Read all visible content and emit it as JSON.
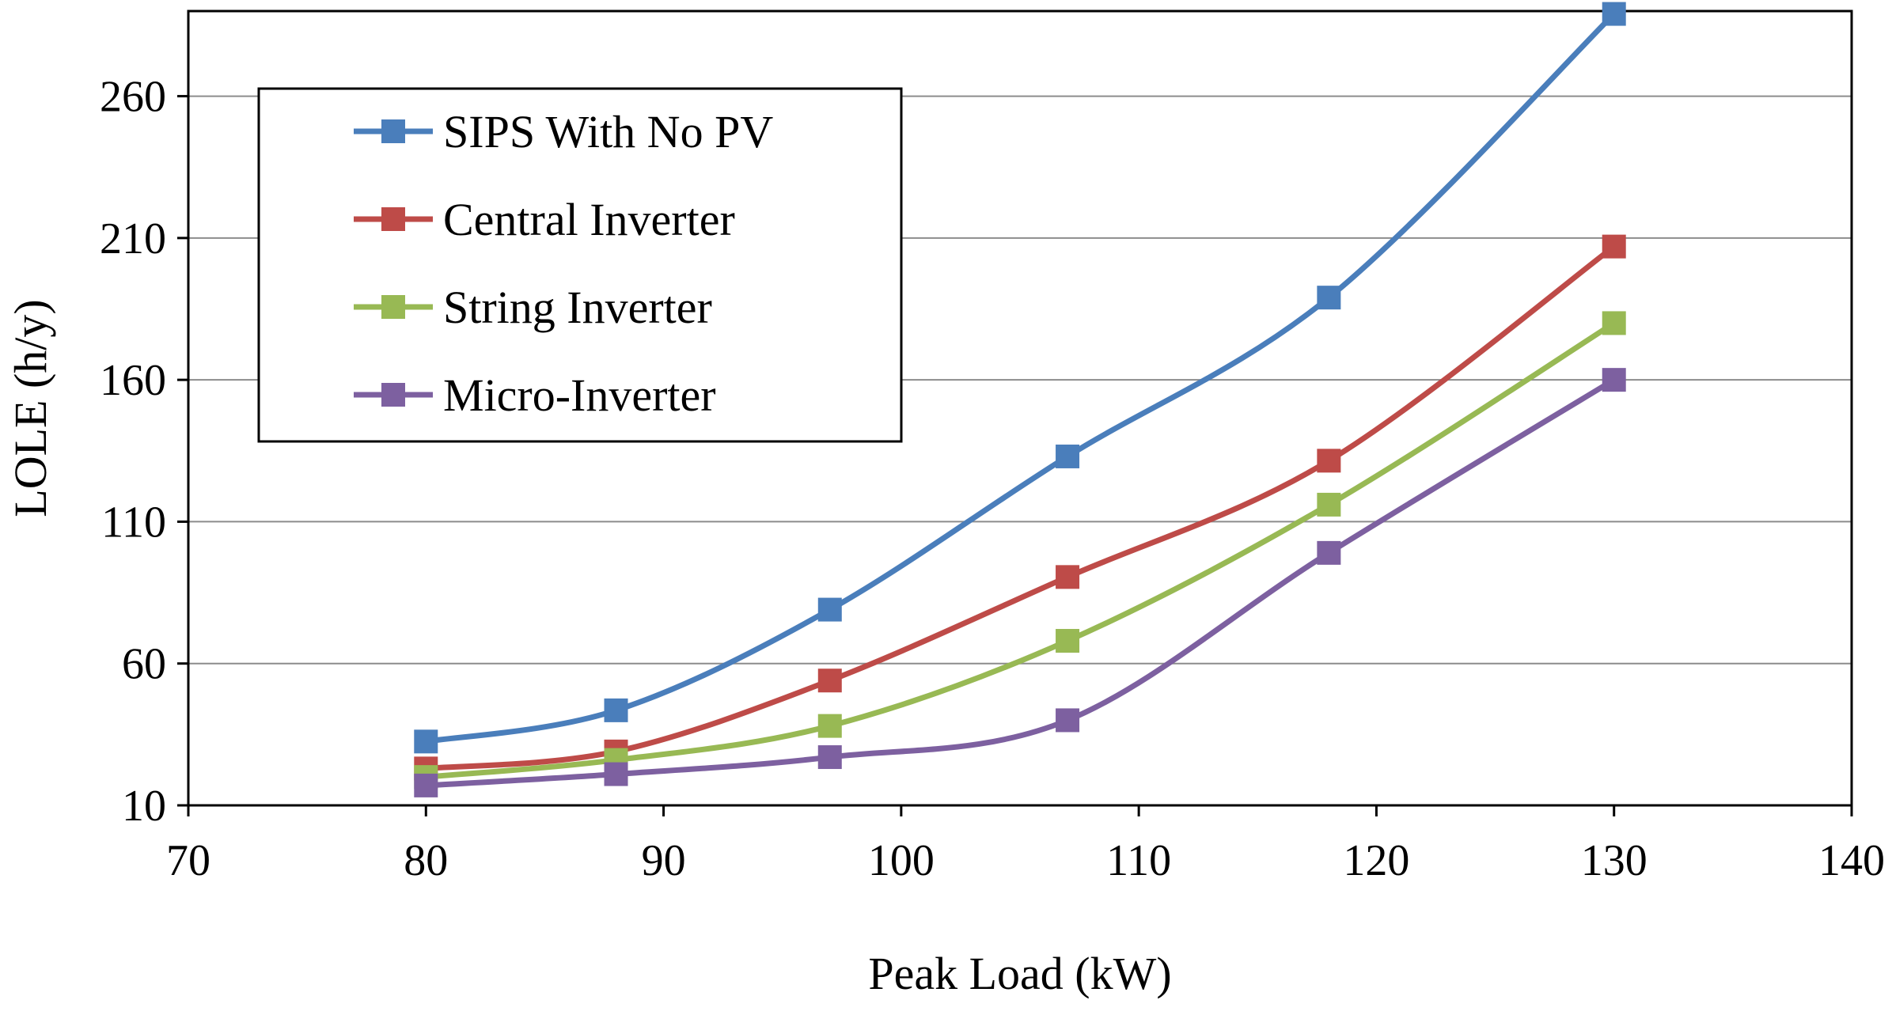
{
  "chart_data": {
    "type": "line",
    "title": "",
    "xlabel": "Peak Load (kW)",
    "ylabel": "LOLE (h/y)",
    "xlim": [
      70,
      140
    ],
    "ylim": [
      10,
      290
    ],
    "x_ticks": [
      "70",
      "80",
      "90",
      "100",
      "110",
      "120",
      "130",
      "140"
    ],
    "y_ticks": [
      "10",
      "60",
      "110",
      "160",
      "210",
      "260"
    ],
    "x_tick_values": [
      70,
      80,
      90,
      100,
      110,
      120,
      130,
      140
    ],
    "y_tick_values": [
      10,
      60,
      110,
      160,
      210,
      260
    ],
    "grid": "horizontal",
    "legend_position": "top-left",
    "x": [
      80,
      88,
      97,
      107,
      118,
      130
    ],
    "series": [
      {
        "name": "SIPS With No PV",
        "color": "#4a7ebb",
        "values": [
          32.5,
          43.5,
          79,
          133,
          189,
          289
        ]
      },
      {
        "name": "Central Inverter",
        "color": "#be4b48",
        "values": [
          23,
          29,
          54,
          90.5,
          131.5,
          207
        ]
      },
      {
        "name": "String Inverter",
        "color": "#98b954",
        "values": [
          20,
          26,
          38,
          68,
          116,
          180
        ]
      },
      {
        "name": "Micro-Inverter",
        "color": "#7d60a0",
        "values": [
          17,
          21,
          27,
          40,
          99,
          160
        ]
      }
    ]
  }
}
